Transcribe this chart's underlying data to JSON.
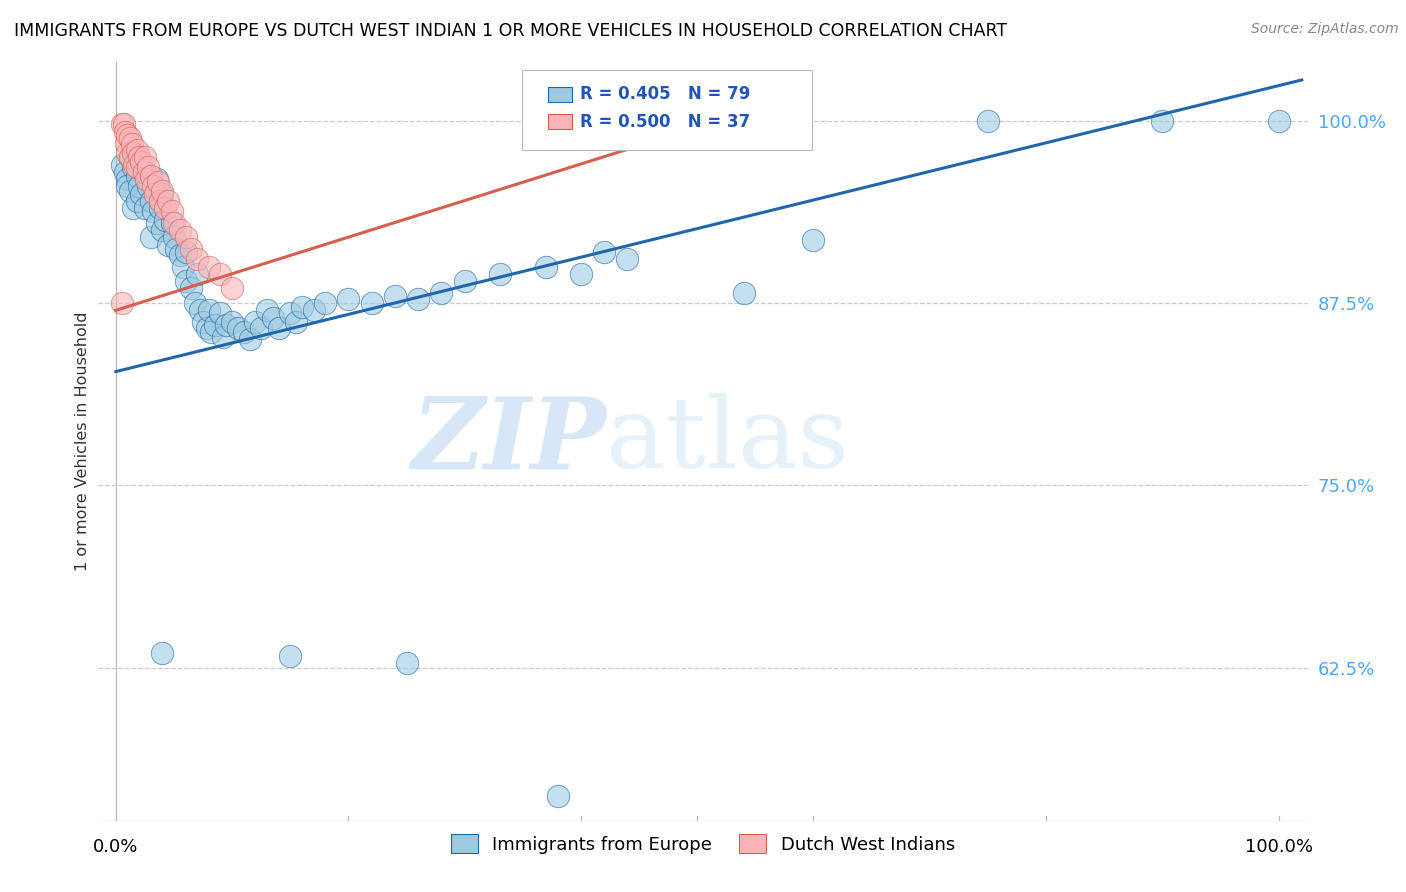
{
  "title": "IMMIGRANTS FROM EUROPE VS DUTCH WEST INDIAN 1 OR MORE VEHICLES IN HOUSEHOLD CORRELATION CHART",
  "source": "Source: ZipAtlas.com",
  "ylabel": "1 or more Vehicles in Household",
  "ytick_labels": [
    "100.0%",
    "87.5%",
    "75.0%",
    "62.5%"
  ],
  "ytick_values": [
    1.0,
    0.875,
    0.75,
    0.625
  ],
  "legend_blue_r": "R = 0.405",
  "legend_blue_n": "N = 79",
  "legend_pink_r": "R = 0.500",
  "legend_pink_n": "N = 37",
  "legend_label_blue": "Immigrants from Europe",
  "legend_label_pink": "Dutch West Indians",
  "blue_color": "#9ecae1",
  "pink_color": "#fbb4b9",
  "line_blue": "#2166ac",
  "line_pink": "#d6604d",
  "blue_scatter": [
    [
      0.005,
      0.97
    ],
    [
      0.008,
      0.965
    ],
    [
      0.01,
      0.96
    ],
    [
      0.01,
      0.955
    ],
    [
      0.012,
      0.975
    ],
    [
      0.012,
      0.952
    ],
    [
      0.015,
      0.968
    ],
    [
      0.015,
      0.94
    ],
    [
      0.018,
      0.962
    ],
    [
      0.018,
      0.945
    ],
    [
      0.02,
      0.97
    ],
    [
      0.02,
      0.955
    ],
    [
      0.022,
      0.95
    ],
    [
      0.025,
      0.965
    ],
    [
      0.025,
      0.94
    ],
    [
      0.028,
      0.955
    ],
    [
      0.03,
      0.945
    ],
    [
      0.03,
      0.92
    ],
    [
      0.032,
      0.938
    ],
    [
      0.035,
      0.96
    ],
    [
      0.035,
      0.93
    ],
    [
      0.038,
      0.94
    ],
    [
      0.04,
      0.95
    ],
    [
      0.04,
      0.925
    ],
    [
      0.042,
      0.932
    ],
    [
      0.045,
      0.915
    ],
    [
      0.048,
      0.93
    ],
    [
      0.05,
      0.92
    ],
    [
      0.052,
      0.912
    ],
    [
      0.055,
      0.908
    ],
    [
      0.058,
      0.9
    ],
    [
      0.06,
      0.91
    ],
    [
      0.06,
      0.89
    ],
    [
      0.065,
      0.885
    ],
    [
      0.068,
      0.875
    ],
    [
      0.07,
      0.895
    ],
    [
      0.072,
      0.87
    ],
    [
      0.075,
      0.862
    ],
    [
      0.078,
      0.858
    ],
    [
      0.08,
      0.87
    ],
    [
      0.082,
      0.855
    ],
    [
      0.085,
      0.86
    ],
    [
      0.09,
      0.868
    ],
    [
      0.092,
      0.852
    ],
    [
      0.095,
      0.86
    ],
    [
      0.1,
      0.862
    ],
    [
      0.105,
      0.858
    ],
    [
      0.11,
      0.855
    ],
    [
      0.115,
      0.85
    ],
    [
      0.12,
      0.862
    ],
    [
      0.125,
      0.858
    ],
    [
      0.13,
      0.87
    ],
    [
      0.135,
      0.865
    ],
    [
      0.14,
      0.858
    ],
    [
      0.15,
      0.868
    ],
    [
      0.155,
      0.862
    ],
    [
      0.16,
      0.872
    ],
    [
      0.17,
      0.87
    ],
    [
      0.18,
      0.875
    ],
    [
      0.2,
      0.878
    ],
    [
      0.22,
      0.875
    ],
    [
      0.24,
      0.88
    ],
    [
      0.26,
      0.878
    ],
    [
      0.28,
      0.882
    ],
    [
      0.3,
      0.89
    ],
    [
      0.33,
      0.895
    ],
    [
      0.37,
      0.9
    ],
    [
      0.4,
      0.895
    ],
    [
      0.42,
      0.91
    ],
    [
      0.44,
      0.905
    ],
    [
      0.04,
      0.635
    ],
    [
      0.15,
      0.633
    ],
    [
      0.25,
      0.628
    ],
    [
      0.38,
      0.537
    ],
    [
      0.6,
      0.918
    ],
    [
      0.75,
      1.0
    ],
    [
      0.9,
      1.0
    ],
    [
      1.0,
      1.0
    ],
    [
      0.54,
      0.882
    ]
  ],
  "pink_scatter": [
    [
      0.005,
      0.998
    ],
    [
      0.007,
      0.998
    ],
    [
      0.008,
      0.992
    ],
    [
      0.009,
      0.985
    ],
    [
      0.01,
      0.99
    ],
    [
      0.01,
      0.978
    ],
    [
      0.012,
      0.988
    ],
    [
      0.012,
      0.975
    ],
    [
      0.014,
      0.984
    ],
    [
      0.015,
      0.978
    ],
    [
      0.016,
      0.97
    ],
    [
      0.018,
      0.98
    ],
    [
      0.018,
      0.968
    ],
    [
      0.02,
      0.975
    ],
    [
      0.022,
      0.972
    ],
    [
      0.024,
      0.965
    ],
    [
      0.025,
      0.975
    ],
    [
      0.026,
      0.96
    ],
    [
      0.028,
      0.968
    ],
    [
      0.03,
      0.962
    ],
    [
      0.032,
      0.955
    ],
    [
      0.034,
      0.95
    ],
    [
      0.036,
      0.958
    ],
    [
      0.038,
      0.945
    ],
    [
      0.04,
      0.952
    ],
    [
      0.042,
      0.94
    ],
    [
      0.045,
      0.945
    ],
    [
      0.048,
      0.938
    ],
    [
      0.05,
      0.93
    ],
    [
      0.055,
      0.925
    ],
    [
      0.06,
      0.92
    ],
    [
      0.065,
      0.912
    ],
    [
      0.07,
      0.905
    ],
    [
      0.08,
      0.9
    ],
    [
      0.09,
      0.895
    ],
    [
      0.1,
      0.885
    ],
    [
      0.005,
      0.875
    ]
  ],
  "blue_trendline_x": [
    0.0,
    1.02
  ],
  "blue_trendline_y": [
    0.828,
    1.028
  ],
  "pink_trendline_x": [
    0.0,
    0.55
  ],
  "pink_trendline_y": [
    0.87,
    1.008
  ],
  "watermark_zip": "ZIP",
  "watermark_atlas": "atlas",
  "xlim": [
    -0.015,
    1.025
  ],
  "ylim": [
    0.52,
    1.04
  ],
  "figsize": [
    14.06,
    8.92
  ],
  "dpi": 100
}
